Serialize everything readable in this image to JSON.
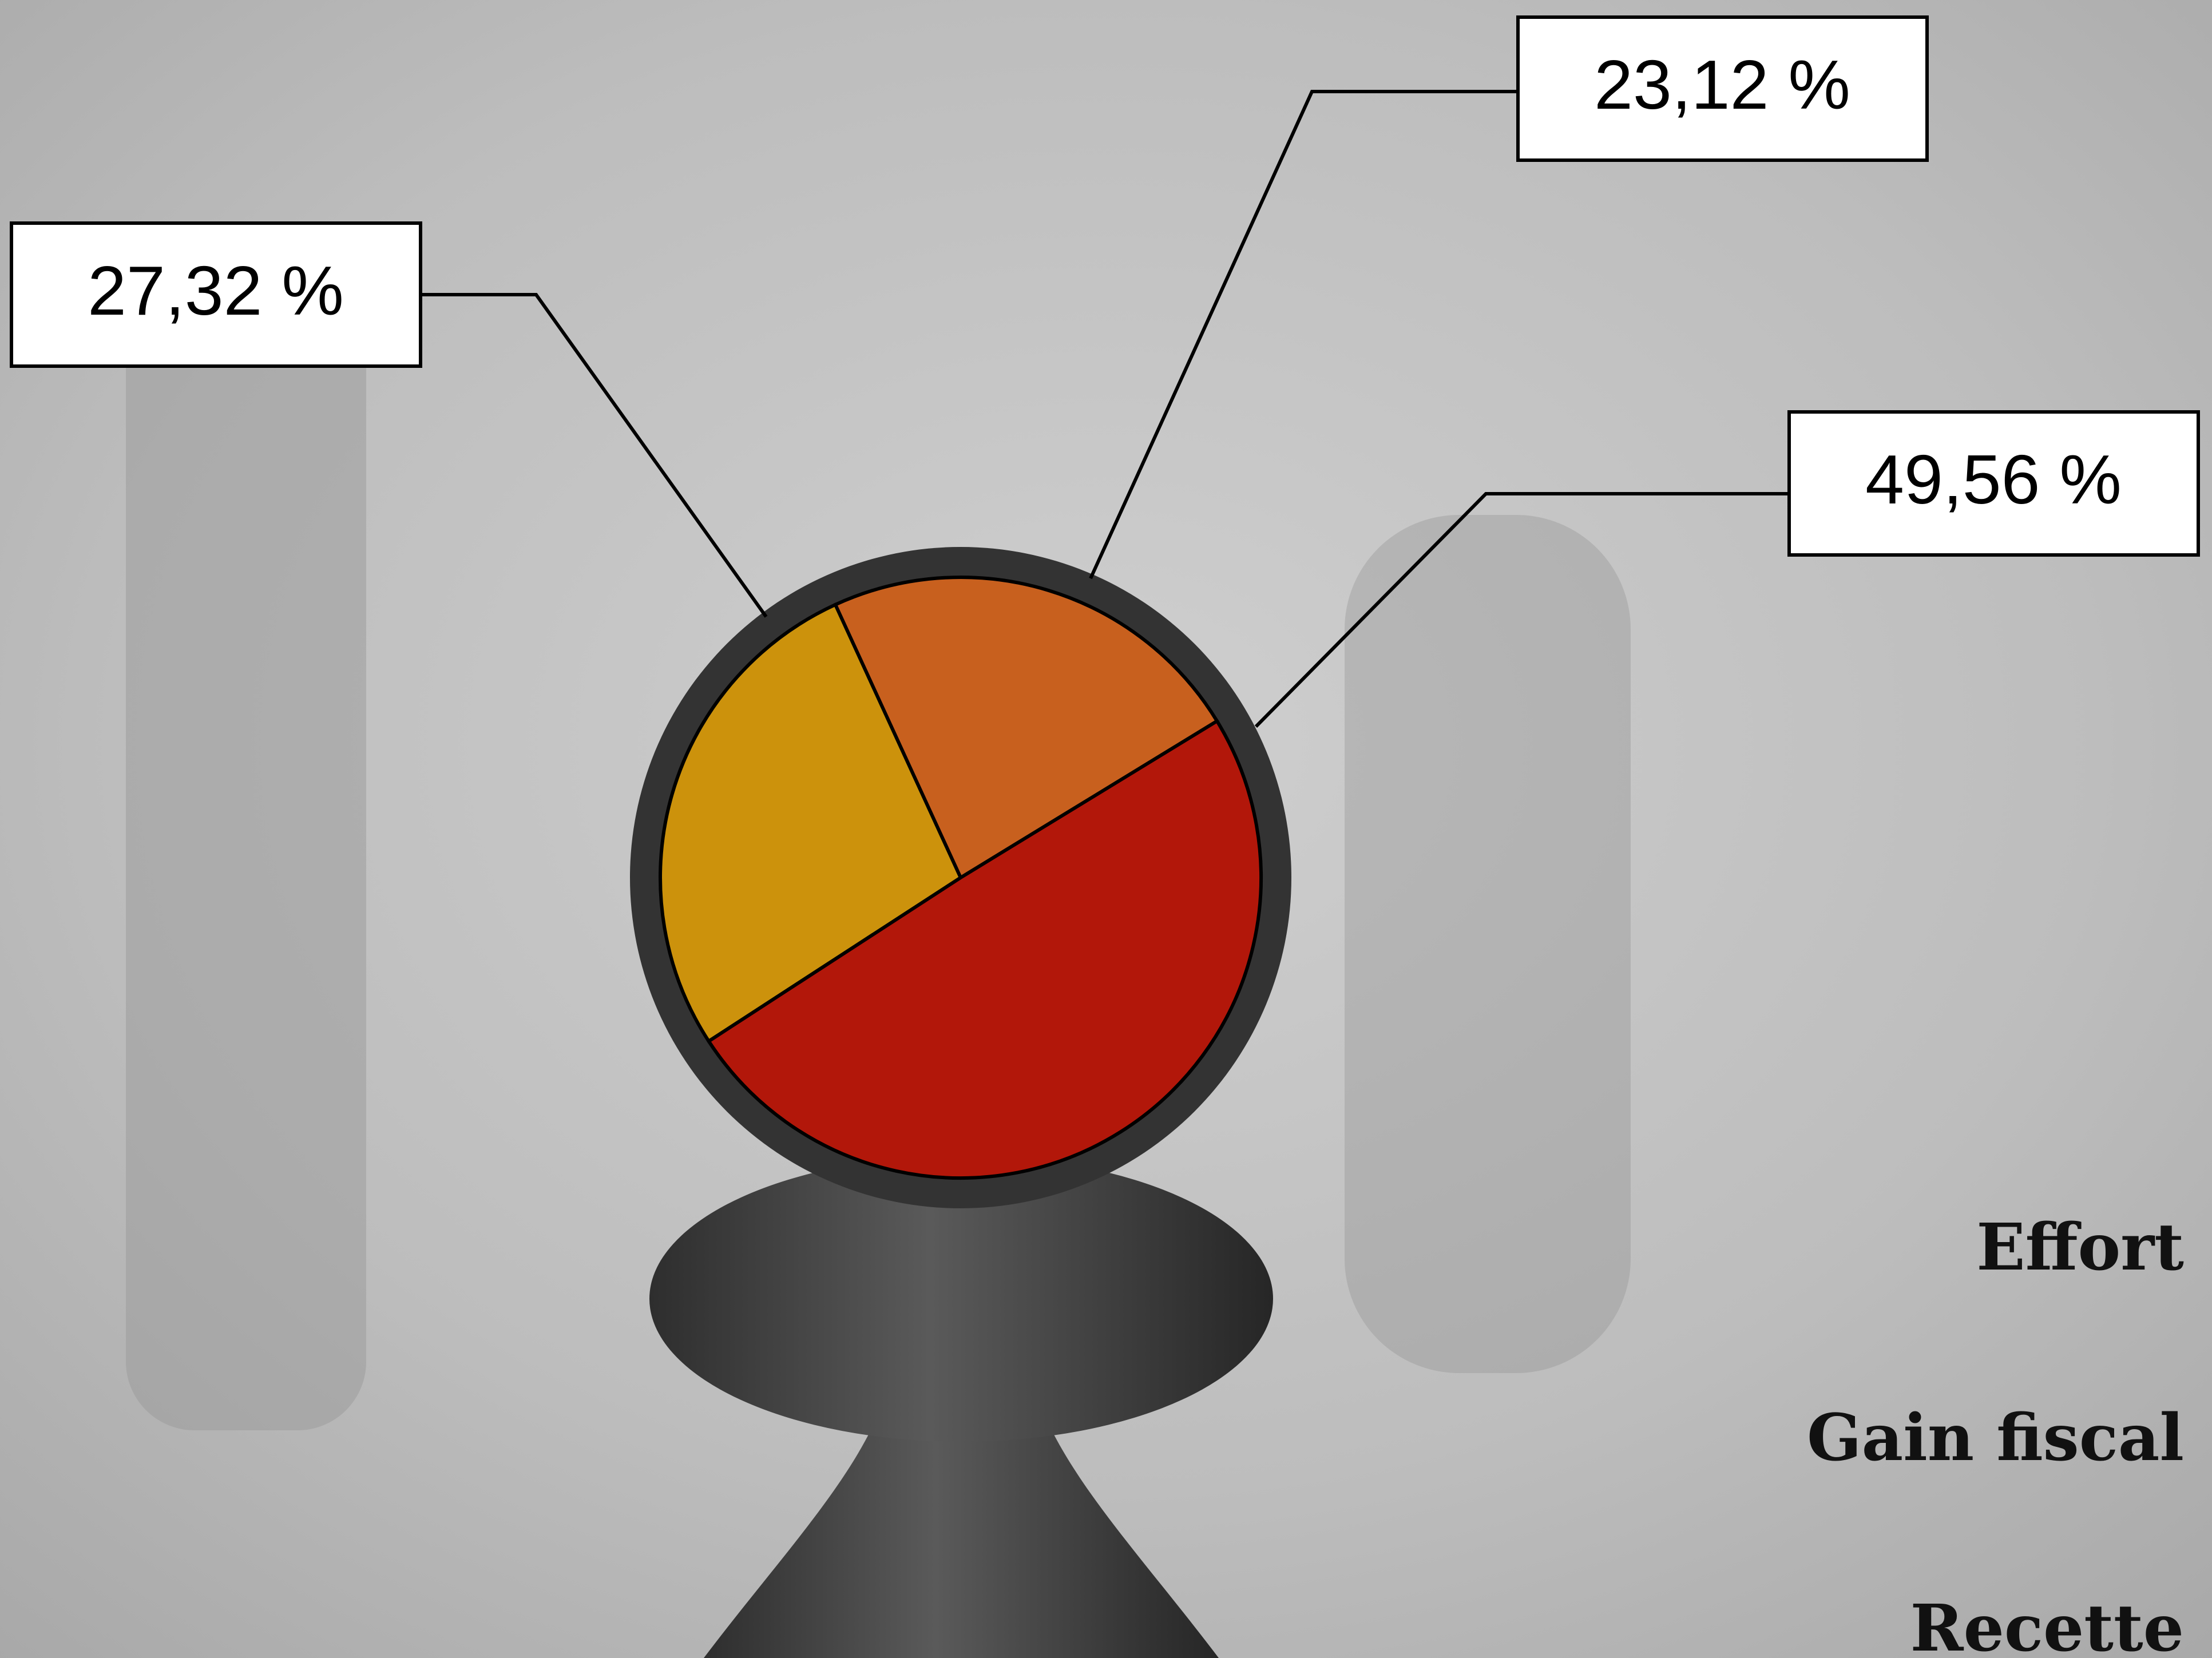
{
  "chart_data": {
    "type": "pie",
    "categories": [
      "Effort",
      "Gain fiscal",
      "Recette"
    ],
    "values": [
      27.32,
      23.12,
      49.56
    ],
    "value_labels": [
      "27,32 %",
      "23,12 %",
      "49,56 %"
    ],
    "colors": [
      "#cc920c",
      "#c8601e",
      "#b2170a"
    ]
  }
}
